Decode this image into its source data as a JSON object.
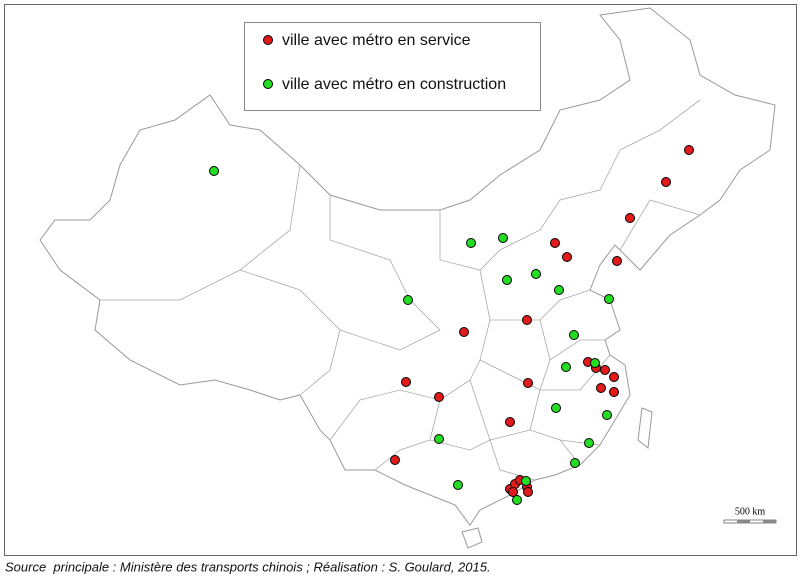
{
  "legend": {
    "items": [
      "ville avec métro en service",
      "ville avec métro en construction"
    ]
  },
  "scale_bar": "500 km",
  "source": "Source  principale : Ministère des transports chinois ; Réalisation : S. Goulard, 2015."
}
